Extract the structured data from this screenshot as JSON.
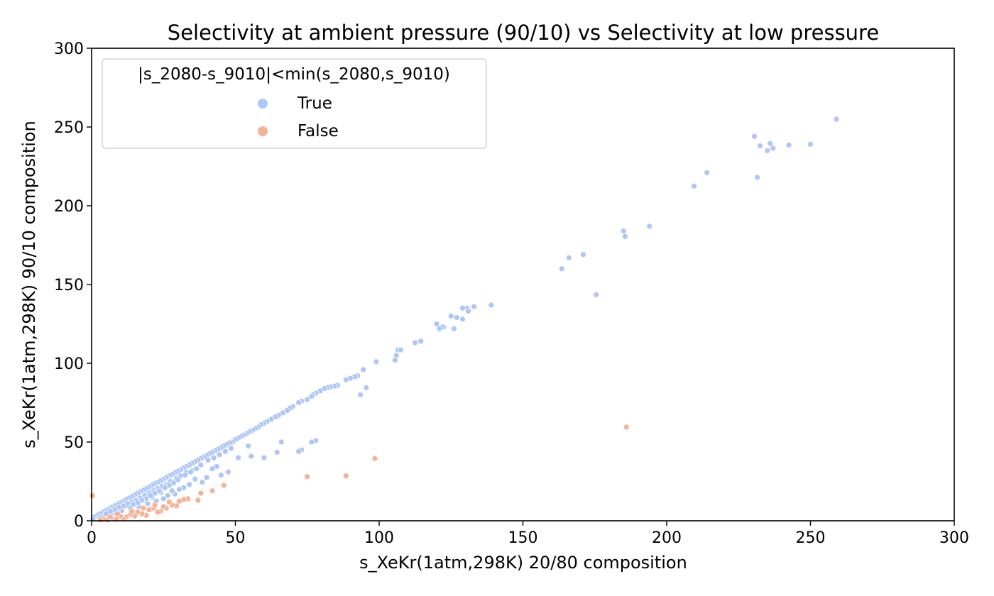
{
  "chart_data": {
    "type": "scatter",
    "title": "Selectivity at ambient pressure (90/10) vs Selectivity at low pressure",
    "xlabel": "s_XeKr(1atm,298K) 20/80 composition",
    "ylabel": "s_XeKr(1atm,298K) 90/10 composition",
    "xlim": [
      0,
      300
    ],
    "ylim": [
      0,
      300
    ],
    "xticks": [
      0,
      50,
      100,
      150,
      200,
      250,
      300
    ],
    "yticks": [
      0,
      50,
      100,
      150,
      200,
      250,
      300
    ],
    "grid": false,
    "legend": {
      "title": "|s_2080-s_9010|<min(s_2080,s_9010)",
      "placement": "top-left",
      "entries": [
        "True",
        "False"
      ]
    },
    "colors": {
      "True": "#aec7f8",
      "False": "#f6b196"
    },
    "series": [
      {
        "name": "True",
        "points": [
          [
            259,
            255
          ],
          [
            230.5,
            244
          ],
          [
            232.5,
            238
          ],
          [
            236,
            239.5
          ],
          [
            235,
            235
          ],
          [
            237,
            236.5
          ],
          [
            242.5,
            238.5
          ],
          [
            250,
            239
          ],
          [
            231.5,
            218
          ],
          [
            214,
            221
          ],
          [
            209.5,
            212.5
          ],
          [
            194,
            187
          ],
          [
            185,
            184
          ],
          [
            185.5,
            180.5
          ],
          [
            171,
            169
          ],
          [
            166,
            167
          ],
          [
            163.5,
            160
          ],
          [
            175.5,
            143.5
          ],
          [
            139,
            137
          ],
          [
            133,
            136
          ],
          [
            130.5,
            135
          ],
          [
            129,
            135
          ],
          [
            131,
            133
          ],
          [
            127,
            129
          ],
          [
            129,
            128
          ],
          [
            125,
            130
          ],
          [
            122.5,
            123
          ],
          [
            120,
            125
          ],
          [
            122,
            123
          ],
          [
            126,
            122
          ],
          [
            121,
            122
          ],
          [
            114.5,
            114
          ],
          [
            112.5,
            113
          ],
          [
            106.5,
            108.5
          ],
          [
            107.5,
            108.5
          ],
          [
            106,
            105
          ],
          [
            105.5,
            102
          ],
          [
            99,
            101
          ],
          [
            94.5,
            96
          ],
          [
            92.5,
            92
          ],
          [
            91.5,
            91.5
          ],
          [
            90,
            90.5
          ],
          [
            88.5,
            89.5
          ],
          [
            85.5,
            86
          ],
          [
            84.5,
            85.5
          ],
          [
            83,
            85
          ],
          [
            82,
            84.5
          ],
          [
            81,
            84
          ],
          [
            79.5,
            82.5
          ],
          [
            78,
            81
          ],
          [
            77,
            80
          ],
          [
            76.5,
            79
          ],
          [
            75,
            77
          ],
          [
            73,
            76
          ],
          [
            72,
            75
          ],
          [
            70,
            72.5
          ],
          [
            69,
            71.5
          ],
          [
            68,
            70
          ],
          [
            66.5,
            68.5
          ],
          [
            65,
            67
          ],
          [
            64,
            66
          ],
          [
            62.5,
            64.5
          ],
          [
            61,
            63
          ],
          [
            60,
            62
          ],
          [
            59,
            61
          ],
          [
            58,
            59.5
          ],
          [
            57,
            58.5
          ],
          [
            56,
            57.5
          ],
          [
            55,
            56.5
          ],
          [
            54,
            55.5
          ],
          [
            53,
            54.5
          ],
          [
            52,
            53.5
          ],
          [
            51,
            52.5
          ],
          [
            50,
            51.5
          ],
          [
            49,
            50
          ],
          [
            48,
            49.5
          ],
          [
            47,
            48.5
          ],
          [
            46,
            47.5
          ],
          [
            45,
            46.5
          ],
          [
            44,
            45.5
          ],
          [
            43,
            44.5
          ],
          [
            42,
            43.5
          ],
          [
            41,
            42.5
          ],
          [
            40,
            41.5
          ],
          [
            39,
            40.5
          ],
          [
            38,
            39.5
          ],
          [
            37,
            38.5
          ],
          [
            36,
            37.5
          ],
          [
            35,
            36.5
          ],
          [
            34,
            35.5
          ],
          [
            33,
            34.5
          ],
          [
            32,
            33.5
          ],
          [
            31,
            32.5
          ],
          [
            30,
            31.5
          ],
          [
            29,
            30.5
          ],
          [
            28,
            29.5
          ],
          [
            27,
            28.5
          ],
          [
            26,
            27.5
          ],
          [
            25,
            26.5
          ],
          [
            24,
            25.5
          ],
          [
            23,
            24.5
          ],
          [
            22,
            23.5
          ],
          [
            21,
            22.5
          ],
          [
            20,
            21.5
          ],
          [
            19,
            20.5
          ],
          [
            18,
            19.5
          ],
          [
            17,
            18.5
          ],
          [
            16,
            17.5
          ],
          [
            15,
            16.5
          ],
          [
            14,
            15.5
          ],
          [
            13,
            14.5
          ],
          [
            12,
            13.5
          ],
          [
            11,
            12.5
          ],
          [
            10,
            11.5
          ],
          [
            9,
            10.5
          ],
          [
            8,
            9.5
          ],
          [
            7,
            8.5
          ],
          [
            6,
            7.5
          ],
          [
            5,
            6.5
          ],
          [
            4,
            5.5
          ],
          [
            3,
            4.5
          ],
          [
            2,
            3.5
          ],
          [
            1,
            2.5
          ],
          [
            0.5,
            1
          ],
          [
            93.5,
            80
          ],
          [
            95.5,
            84.5
          ],
          [
            78,
            51
          ],
          [
            76.5,
            50
          ],
          [
            73,
            45
          ],
          [
            72,
            44
          ],
          [
            66,
            50
          ],
          [
            64.5,
            43.5
          ],
          [
            60,
            40
          ],
          [
            55.5,
            41
          ],
          [
            54.5,
            47.5
          ],
          [
            51,
            40
          ],
          [
            47.5,
            31
          ],
          [
            45,
            29
          ],
          [
            43.5,
            34.5
          ],
          [
            42,
            33
          ],
          [
            40,
            27.5
          ],
          [
            38.5,
            24.5
          ],
          [
            36,
            26.5
          ],
          [
            34,
            23
          ],
          [
            32,
            21
          ],
          [
            30.5,
            20
          ],
          [
            29,
            17
          ],
          [
            28,
            19
          ],
          [
            26.5,
            16
          ],
          [
            25,
            14
          ],
          [
            24,
            18
          ],
          [
            22.5,
            12.5
          ],
          [
            21,
            15
          ],
          [
            19.5,
            11
          ],
          [
            18,
            13
          ],
          [
            16.5,
            9
          ],
          [
            15,
            10.5
          ],
          [
            13.5,
            8
          ],
          [
            12,
            9.5
          ],
          [
            10.5,
            6.5
          ],
          [
            9,
            7
          ],
          [
            7.5,
            5
          ],
          [
            6,
            4.5
          ],
          [
            4.5,
            3
          ],
          [
            3,
            2
          ],
          [
            35,
            32
          ],
          [
            33,
            30.5
          ],
          [
            31,
            28.5
          ],
          [
            29.5,
            27
          ],
          [
            27.5,
            25
          ],
          [
            26,
            23
          ],
          [
            24.5,
            22
          ],
          [
            23,
            20.5
          ],
          [
            21.5,
            19
          ],
          [
            20,
            17.5
          ],
          [
            18.5,
            16
          ],
          [
            17,
            14.5
          ],
          [
            15.5,
            13
          ],
          [
            14,
            12
          ],
          [
            12.5,
            11
          ],
          [
            11,
            9.5
          ],
          [
            9.5,
            8.5
          ],
          [
            8,
            7
          ],
          [
            6.5,
            6
          ],
          [
            5,
            4.5
          ],
          [
            38,
            35.5
          ],
          [
            40.5,
            38.5
          ],
          [
            42.5,
            40
          ],
          [
            44.5,
            42
          ],
          [
            46.5,
            44
          ],
          [
            48.5,
            46
          ],
          [
            36.5,
            33
          ],
          [
            34.5,
            31
          ],
          [
            32.5,
            29
          ],
          [
            30,
            26
          ],
          [
            28.5,
            24
          ],
          [
            27,
            22.5
          ],
          [
            25.5,
            21
          ],
          [
            23.5,
            19
          ],
          [
            22,
            17.5
          ],
          [
            20.5,
            16
          ],
          [
            19,
            14
          ],
          [
            17.5,
            13
          ],
          [
            16,
            11.5
          ],
          [
            14.5,
            10.5
          ]
        ]
      },
      {
        "name": "False",
        "points": [
          [
            186,
            59.5
          ],
          [
            98.5,
            39.5
          ],
          [
            88.5,
            28.5
          ],
          [
            75,
            28
          ],
          [
            46,
            22.5
          ],
          [
            42,
            19
          ],
          [
            38,
            17.5
          ],
          [
            37,
            13
          ],
          [
            33.5,
            14
          ],
          [
            32,
            13.5
          ],
          [
            30.5,
            12.5
          ],
          [
            29.5,
            9.5
          ],
          [
            28,
            10
          ],
          [
            26,
            8
          ],
          [
            24,
            6
          ],
          [
            23,
            5.5
          ],
          [
            21.5,
            8
          ],
          [
            20,
            7
          ],
          [
            19,
            3.5
          ],
          [
            17.5,
            4.5
          ],
          [
            16,
            5.5
          ],
          [
            15,
            3
          ],
          [
            13.5,
            4
          ],
          [
            12,
            2.5
          ],
          [
            11,
            1.5
          ],
          [
            10,
            3
          ],
          [
            8.5,
            1
          ],
          [
            7,
            2
          ],
          [
            5.5,
            0.5
          ],
          [
            4,
            1
          ],
          [
            0.3,
            16
          ],
          [
            27,
            12
          ],
          [
            25,
            9
          ],
          [
            22,
            10
          ],
          [
            18,
            8
          ],
          [
            14,
            6
          ],
          [
            9,
            4.5
          ],
          [
            6.5,
            2.5
          ],
          [
            3,
            0.5
          ]
        ]
      }
    ]
  }
}
